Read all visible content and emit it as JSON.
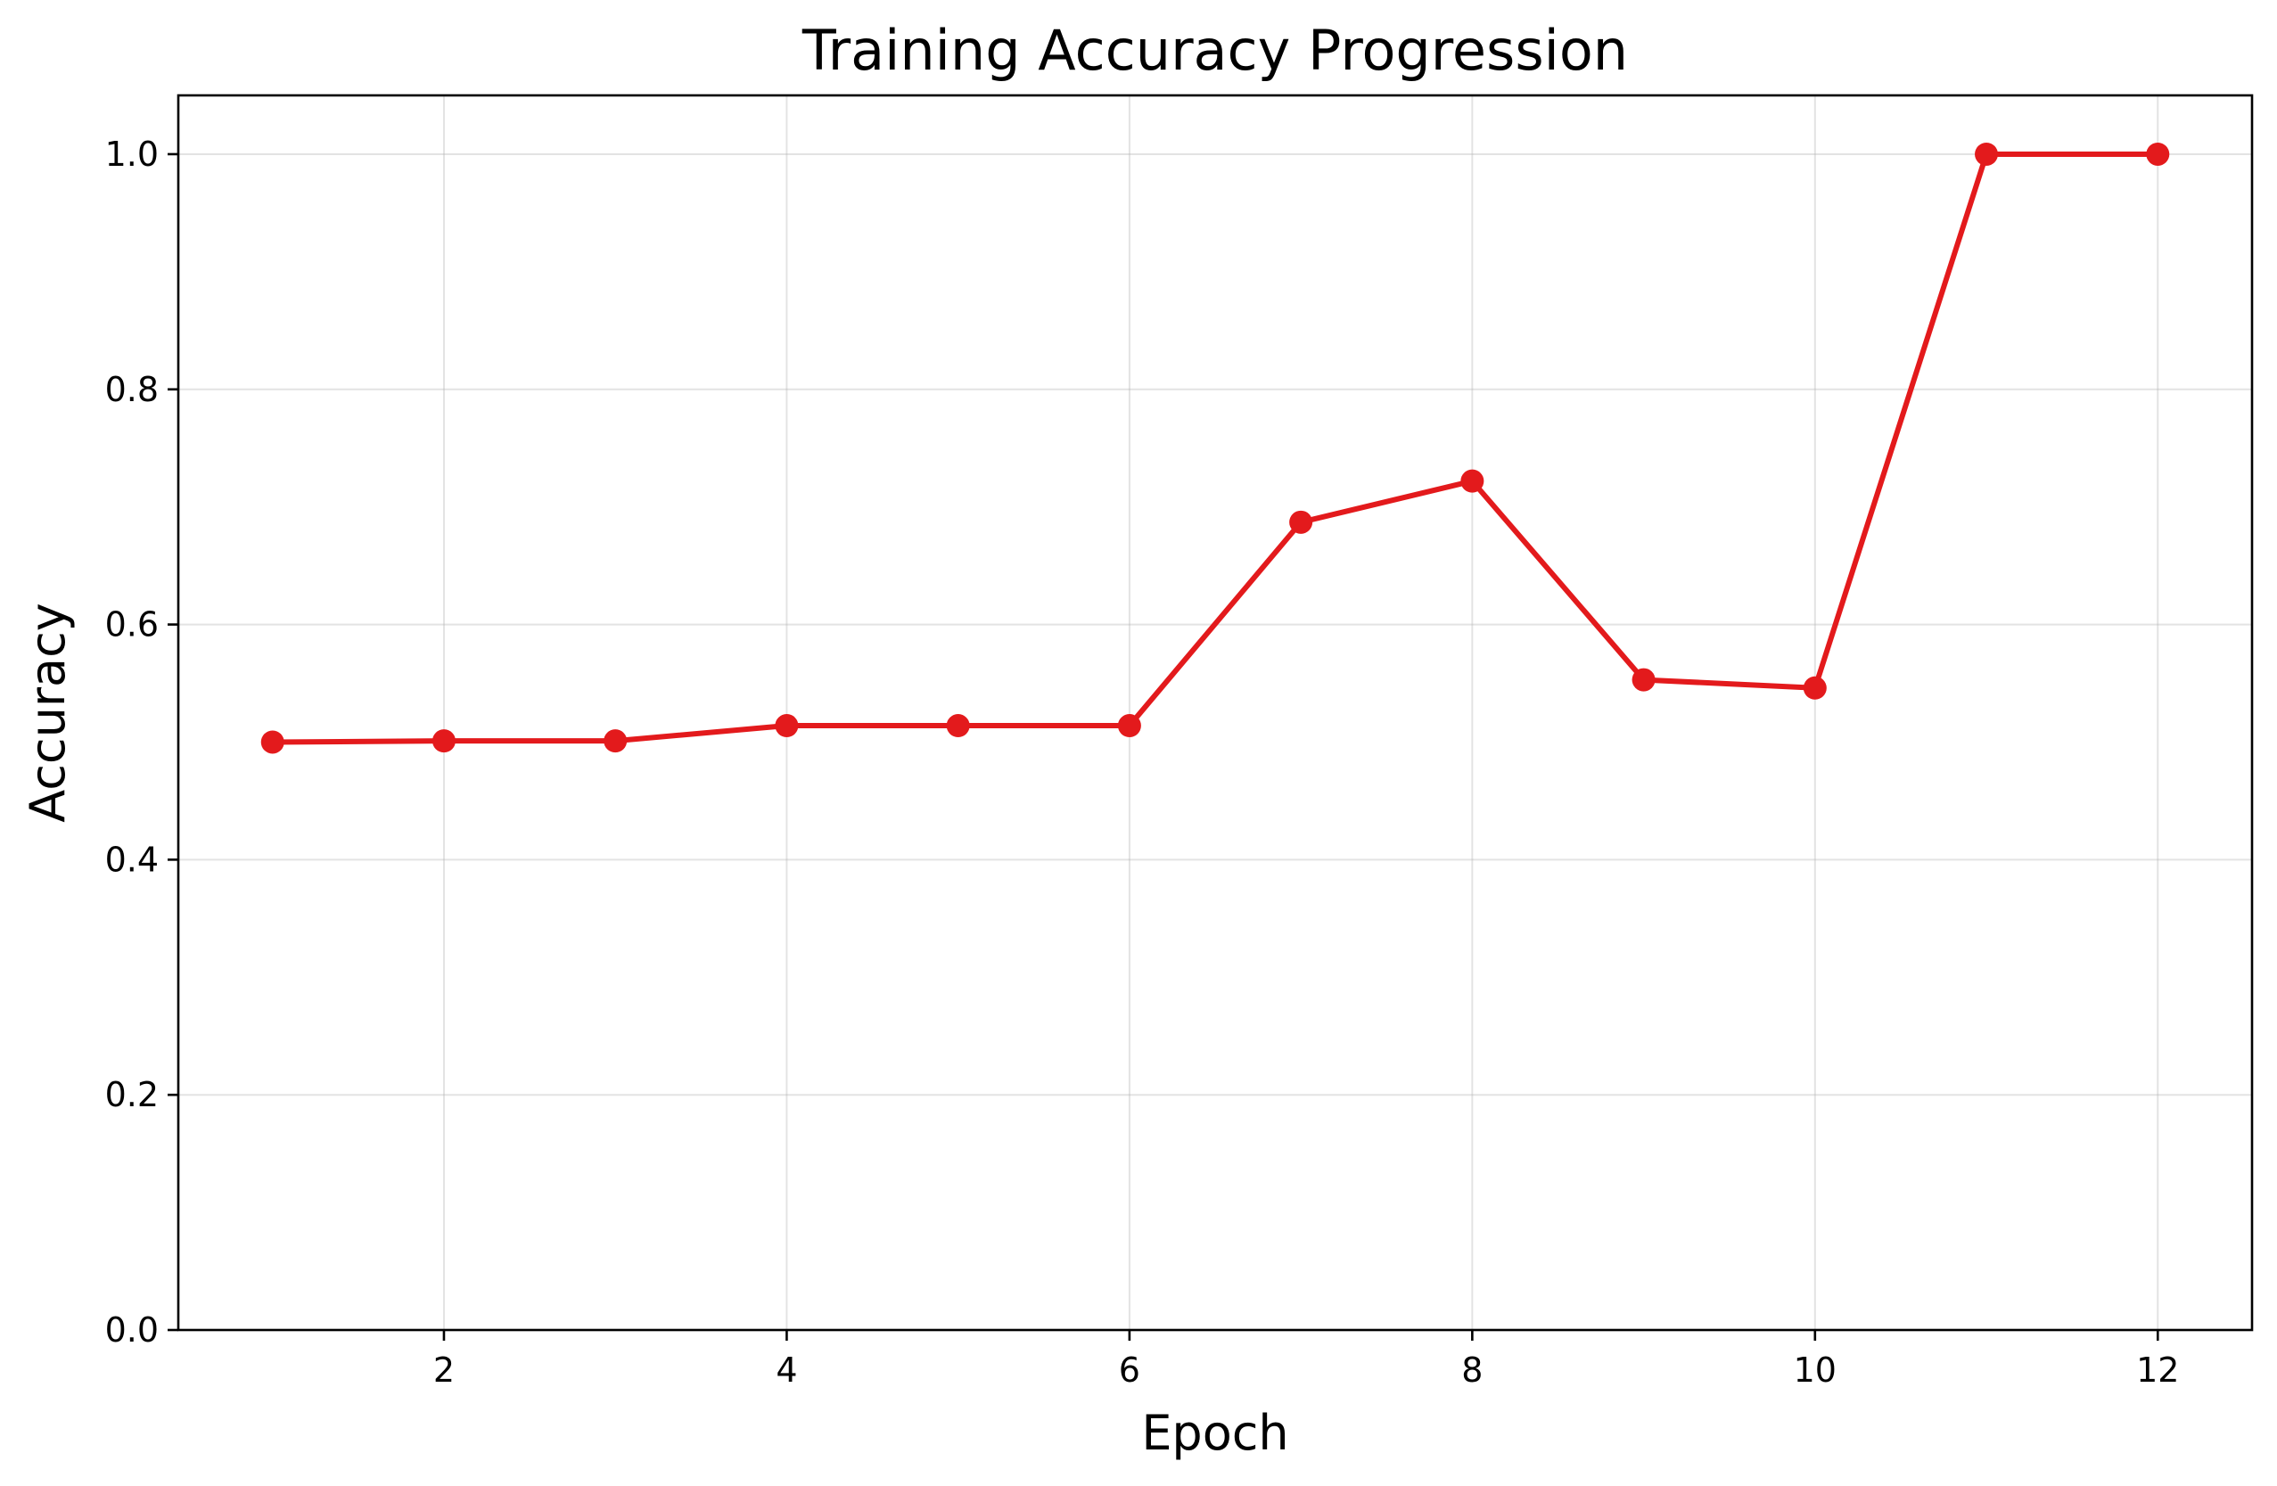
{
  "chart_data": {
    "type": "line",
    "title": "Training Accuracy Progression",
    "xlabel": "Epoch",
    "ylabel": "Accuracy",
    "xlim": [
      0.45,
      12.55
    ],
    "ylim": [
      0.0,
      1.05
    ],
    "xticks": [
      2,
      4,
      6,
      8,
      10,
      12
    ],
    "xtick_labels": [
      "2",
      "4",
      "6",
      "8",
      "10",
      "12"
    ],
    "yticks": [
      0.0,
      0.2,
      0.4,
      0.6,
      0.8,
      1.0
    ],
    "ytick_labels": [
      "0.0",
      "0.2",
      "0.4",
      "0.6",
      "0.8",
      "1.0"
    ],
    "grid": true,
    "series": [
      {
        "color": "#e31a1c",
        "marker": "circle",
        "x": [
          1,
          2,
          3,
          4,
          5,
          6,
          7,
          8,
          9,
          10,
          11,
          12
        ],
        "y": [
          0.5,
          0.501,
          0.501,
          0.514,
          0.514,
          0.514,
          0.687,
          0.722,
          0.553,
          0.546,
          1.0,
          1.0
        ]
      }
    ]
  }
}
